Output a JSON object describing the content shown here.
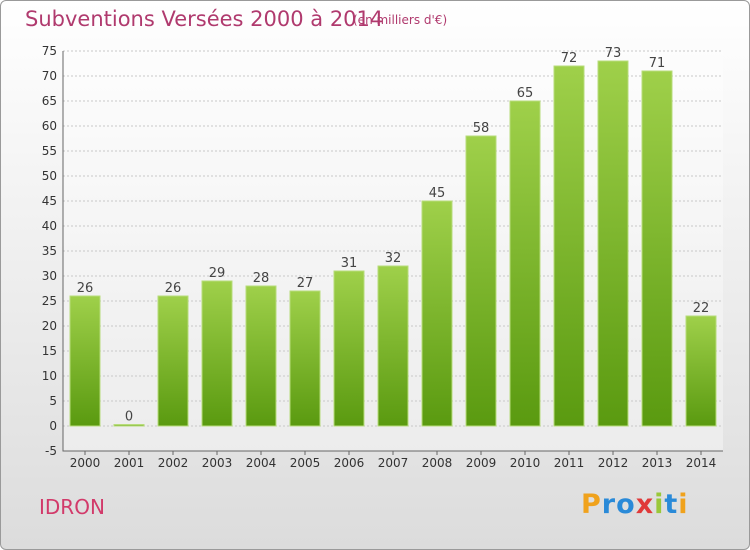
{
  "title": "Subventions Versées 2000 à 2014",
  "subtitle": "(en milliers d'€)",
  "commune": "IDRON",
  "logo_text": "Proxiti",
  "colors": {
    "bar_top": "#9fd04a",
    "bar_bottom": "#5a9a10",
    "title": "#b03a6e",
    "commune": "#d23a6a"
  },
  "chart_data": {
    "type": "bar",
    "categories": [
      "2000",
      "2001",
      "2002",
      "2003",
      "2004",
      "2005",
      "2006",
      "2007",
      "2008",
      "2009",
      "2010",
      "2011",
      "2012",
      "2013",
      "2014"
    ],
    "values": [
      26,
      0,
      26,
      29,
      28,
      27,
      31,
      32,
      45,
      58,
      65,
      72,
      73,
      71,
      22
    ],
    "ylim": [
      -5,
      75
    ],
    "yticks": [
      -5,
      0,
      5,
      10,
      15,
      20,
      25,
      30,
      35,
      40,
      45,
      50,
      55,
      60,
      65,
      70,
      75
    ],
    "grid": true
  }
}
